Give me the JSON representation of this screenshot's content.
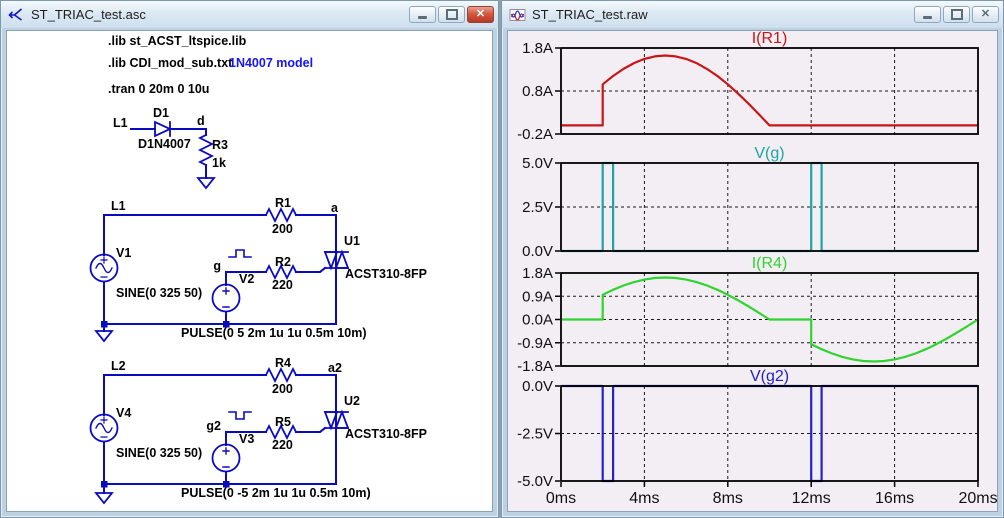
{
  "left_window": {
    "title": "ST_TRIAC_test.asc",
    "directives": {
      "lib1": ".lib st_ACST_ltspice.lib",
      "lib2": ".lib CDI_mod_sub.txt",
      "comment": "1N4007 model",
      "tran": ".tran 0 20m 0 10u"
    },
    "diode_circuit": {
      "net": "L1",
      "diode": "D1",
      "model": "D1N4007",
      "node": "d",
      "res": "R3",
      "res_val": "1k"
    },
    "circuit1": {
      "net": "L1",
      "src": "V1",
      "src_val": "SINE(0 325 50)",
      "res_main": "R1",
      "res_main_val": "200",
      "node_a": "a",
      "triac": "U1",
      "triac_model": "ACST310-8FP",
      "gate_node": "g",
      "gate_src": "V2",
      "res_gate": "R2",
      "res_gate_val": "220",
      "pulse": "PULSE(0 5 2m 1u 1u 0.5m 10m)"
    },
    "circuit2": {
      "net": "L2",
      "src": "V4",
      "src_val": "SINE(0 325 50)",
      "res_main": "R4",
      "res_main_val": "200",
      "node_a": "a2",
      "triac": "U2",
      "triac_model": "ACST310-8FP",
      "gate_node": "g2",
      "gate_src": "V3",
      "res_gate": "R5",
      "res_gate_val": "220",
      "pulse": "PULSE(0 -5 2m 1u 1u 0.5m 10m)"
    }
  },
  "right_window": {
    "title": "ST_TRIAC_test.raw"
  },
  "colors": {
    "schematic_blue": "#0b0bbe",
    "comment_blue": "#1414ff",
    "plot_bg": "#f3eef4",
    "trace_red": "#c81616",
    "trace_teal": "#1ba5a5",
    "trace_green": "#2fd42f",
    "trace_blue": "#2222cc"
  },
  "x_axis": {
    "label_unit": "ms",
    "range": [
      0,
      20
    ],
    "gridlines": [
      4,
      8,
      12,
      16
    ],
    "ticks": [
      {
        "v": 0,
        "label": "0ms"
      },
      {
        "v": 4,
        "label": "4ms"
      },
      {
        "v": 8,
        "label": "8ms"
      },
      {
        "v": 12,
        "label": "12ms"
      },
      {
        "v": 16,
        "label": "16ms"
      },
      {
        "v": 20,
        "label": "20ms"
      }
    ]
  },
  "chart_data": [
    {
      "type": "line",
      "title": "I(R1)",
      "color": "#c81616",
      "x_range": [
        0,
        20
      ],
      "y_range": [
        -0.2,
        1.8
      ],
      "y_ticks": [
        {
          "v": 1.8,
          "label": "1.8A"
        },
        {
          "v": 0.8,
          "label": "0.8A"
        },
        {
          "v": -0.2,
          "label": "-0.2A"
        }
      ],
      "h_grid": [
        0.8
      ],
      "points": [
        [
          0,
          0
        ],
        [
          2,
          0
        ],
        [
          2,
          0.955
        ],
        [
          2.5,
          1.149
        ],
        [
          3,
          1.315
        ],
        [
          3.5,
          1.448
        ],
        [
          4,
          1.546
        ],
        [
          4.5,
          1.605
        ],
        [
          5,
          1.625
        ],
        [
          5.5,
          1.605
        ],
        [
          6,
          1.546
        ],
        [
          6.5,
          1.448
        ],
        [
          7,
          1.315
        ],
        [
          7.5,
          1.149
        ],
        [
          8,
          0.955
        ],
        [
          8.5,
          0.738
        ],
        [
          9,
          0.502
        ],
        [
          9.5,
          0.254
        ],
        [
          10,
          0
        ],
        [
          20,
          0
        ]
      ]
    },
    {
      "type": "line",
      "title": "V(g)",
      "color": "#1ba5a5",
      "x_range": [
        0,
        20
      ],
      "y_range": [
        0,
        5
      ],
      "y_ticks": [
        {
          "v": 5,
          "label": "5.0V"
        },
        {
          "v": 2.5,
          "label": "2.5V"
        },
        {
          "v": 0,
          "label": "0.0V"
        }
      ],
      "h_grid": [
        2.5
      ],
      "points": [
        [
          0,
          0
        ],
        [
          2,
          0
        ],
        [
          2,
          5
        ],
        [
          2.5,
          5
        ],
        [
          2.5,
          0
        ],
        [
          12,
          0
        ],
        [
          12,
          5
        ],
        [
          12.5,
          5
        ],
        [
          12.5,
          0
        ],
        [
          20,
          0
        ]
      ]
    },
    {
      "type": "line",
      "title": "I(R4)",
      "color": "#2fd42f",
      "x_range": [
        0,
        20
      ],
      "y_range": [
        -1.8,
        1.8
      ],
      "y_ticks": [
        {
          "v": 1.8,
          "label": "1.8A"
        },
        {
          "v": 0.9,
          "label": "0.9A"
        },
        {
          "v": 0,
          "label": "0.0A"
        },
        {
          "v": -0.9,
          "label": "-0.9A"
        },
        {
          "v": -1.8,
          "label": "-1.8A"
        }
      ],
      "h_grid": [
        0.9,
        0,
        -0.9
      ],
      "points": [
        [
          0,
          0
        ],
        [
          2,
          0
        ],
        [
          2,
          0.955
        ],
        [
          2.5,
          1.149
        ],
        [
          3,
          1.315
        ],
        [
          3.5,
          1.448
        ],
        [
          4,
          1.546
        ],
        [
          4.5,
          1.605
        ],
        [
          5,
          1.625
        ],
        [
          5.5,
          1.605
        ],
        [
          6,
          1.546
        ],
        [
          6.5,
          1.448
        ],
        [
          7,
          1.315
        ],
        [
          7.5,
          1.149
        ],
        [
          8,
          0.955
        ],
        [
          8.5,
          0.738
        ],
        [
          9,
          0.502
        ],
        [
          9.5,
          0.254
        ],
        [
          10,
          0
        ],
        [
          12,
          0
        ],
        [
          12,
          -0.955
        ],
        [
          12.5,
          -1.149
        ],
        [
          13,
          -1.315
        ],
        [
          13.5,
          -1.448
        ],
        [
          14,
          -1.546
        ],
        [
          14.5,
          -1.605
        ],
        [
          15,
          -1.625
        ],
        [
          15.5,
          -1.605
        ],
        [
          16,
          -1.546
        ],
        [
          16.5,
          -1.448
        ],
        [
          17,
          -1.315
        ],
        [
          17.5,
          -1.149
        ],
        [
          18,
          -0.955
        ],
        [
          18.5,
          -0.738
        ],
        [
          19,
          -0.502
        ],
        [
          19.5,
          -0.254
        ],
        [
          20,
          0
        ]
      ]
    },
    {
      "type": "line",
      "title": "V(g2)",
      "color": "#2222cc",
      "x_range": [
        0,
        20
      ],
      "y_range": [
        -5,
        0
      ],
      "y_ticks": [
        {
          "v": 0,
          "label": "0.0V"
        },
        {
          "v": -2.5,
          "label": "-2.5V"
        },
        {
          "v": -5,
          "label": "-5.0V"
        }
      ],
      "h_grid": [
        -2.5
      ],
      "points": [
        [
          0,
          0
        ],
        [
          2,
          0
        ],
        [
          2,
          -5
        ],
        [
          2.5,
          -5
        ],
        [
          2.5,
          0
        ],
        [
          12,
          0
        ],
        [
          12,
          -5
        ],
        [
          12.5,
          -5
        ],
        [
          12.5,
          0
        ],
        [
          20,
          0
        ]
      ]
    }
  ]
}
